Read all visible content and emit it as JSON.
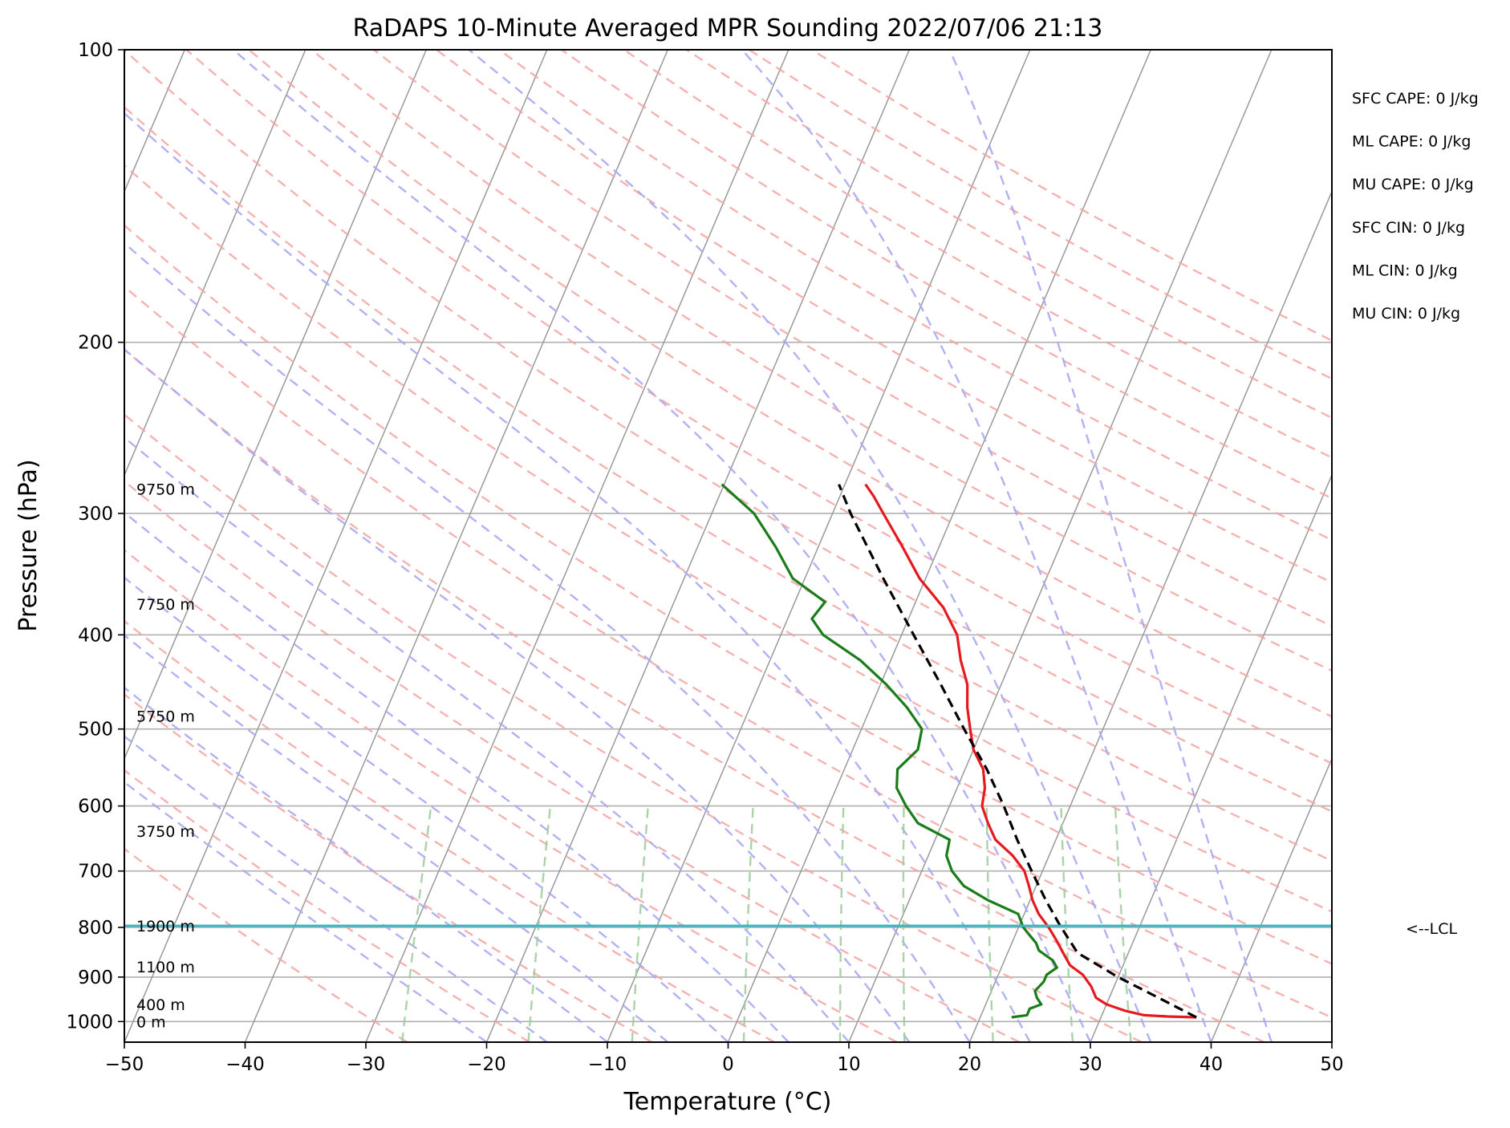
{
  "chart_data": {
    "type": "line",
    "title": "RaDAPS 10-Minute Averaged MPR Sounding 2022/07/06 21:13",
    "xlabel": "Temperature (°C)",
    "ylabel": "Pressure (hPa)",
    "xlim": [
      -50,
      50
    ],
    "ylim": [
      1050,
      100
    ],
    "y_scale": "log",
    "skew": "skew-T log-p",
    "grid": true,
    "x_ticks": [
      "−50",
      "−40",
      "−30",
      "−20",
      "−10",
      "0",
      "10",
      "20",
      "30",
      "40",
      "50"
    ],
    "x_tick_values": [
      -50,
      -40,
      -30,
      -20,
      -10,
      0,
      10,
      20,
      30,
      40,
      50
    ],
    "y_ticks": [
      "100",
      "200",
      "300",
      "400",
      "500",
      "600",
      "700",
      "800",
      "900",
      "1000"
    ],
    "y_tick_values": [
      100,
      200,
      300,
      400,
      500,
      600,
      700,
      800,
      900,
      1000
    ],
    "height_labels": [
      {
        "text": "9750 m",
        "p": 283
      },
      {
        "text": "7750 m",
        "p": 372
      },
      {
        "text": "5750 m",
        "p": 485
      },
      {
        "text": "3750 m",
        "p": 637
      },
      {
        "text": "1900 m",
        "p": 797
      },
      {
        "text": "1100 m",
        "p": 878
      },
      {
        "text": "400 m",
        "p": 960
      },
      {
        "text": "0 m",
        "p": 1000
      }
    ],
    "lcl": {
      "label": "<--LCL",
      "p": 797
    },
    "colors": {
      "temperature": "#e6191e",
      "dewpoint": "#1a7d1a",
      "parcel": "#000000",
      "lcl": "#2bbfbf",
      "isotherm": "#999999",
      "dry_adiabat": "#f4a3a3",
      "moist_adiabat": "#a9a9f2",
      "mixing_ratio": "#9fcf9f"
    },
    "series": [
      {
        "name": "",
        "kind": "temperature",
        "points": [
          {
            "p": 990,
            "t": 37.9
          },
          {
            "p": 988,
            "t": 35.5
          },
          {
            "p": 985,
            "t": 33.5
          },
          {
            "p": 975,
            "t": 31.8
          },
          {
            "p": 960,
            "t": 30.0
          },
          {
            "p": 945,
            "t": 28.9
          },
          {
            "p": 920,
            "t": 28.1
          },
          {
            "p": 895,
            "t": 27.0
          },
          {
            "p": 875,
            "t": 25.6
          },
          {
            "p": 850,
            "t": 24.6
          },
          {
            "p": 825,
            "t": 23.6
          },
          {
            "p": 800,
            "t": 22.5
          },
          {
            "p": 775,
            "t": 21.2
          },
          {
            "p": 750,
            "t": 20.2
          },
          {
            "p": 725,
            "t": 19.4
          },
          {
            "p": 700,
            "t": 18.5
          },
          {
            "p": 675,
            "t": 17.0
          },
          {
            "p": 650,
            "t": 15.0
          },
          {
            "p": 625,
            "t": 13.8
          },
          {
            "p": 600,
            "t": 12.7
          },
          {
            "p": 575,
            "t": 12.3
          },
          {
            "p": 550,
            "t": 11.5
          },
          {
            "p": 525,
            "t": 10.0
          },
          {
            "p": 500,
            "t": 9.0
          },
          {
            "p": 475,
            "t": 8.0
          },
          {
            "p": 450,
            "t": 7.2
          },
          {
            "p": 425,
            "t": 5.8
          },
          {
            "p": 400,
            "t": 4.6
          },
          {
            "p": 375,
            "t": 2.5
          },
          {
            "p": 350,
            "t": -0.5
          },
          {
            "p": 325,
            "t": -3.0
          },
          {
            "p": 300,
            "t": -5.8
          },
          {
            "p": 288,
            "t": -7.2
          },
          {
            "p": 280,
            "t": -8.3
          }
        ]
      },
      {
        "name": "",
        "kind": "dewpoint",
        "points": [
          {
            "p": 990,
            "t": 22.6
          },
          {
            "p": 985,
            "t": 23.8
          },
          {
            "p": 970,
            "t": 23.8
          },
          {
            "p": 960,
            "t": 24.6
          },
          {
            "p": 945,
            "t": 24.0
          },
          {
            "p": 930,
            "t": 23.6
          },
          {
            "p": 910,
            "t": 24.0
          },
          {
            "p": 895,
            "t": 24.0
          },
          {
            "p": 880,
            "t": 24.6
          },
          {
            "p": 865,
            "t": 24.0
          },
          {
            "p": 845,
            "t": 22.5
          },
          {
            "p": 830,
            "t": 22.0
          },
          {
            "p": 815,
            "t": 21.2
          },
          {
            "p": 800,
            "t": 20.4
          },
          {
            "p": 775,
            "t": 19.5
          },
          {
            "p": 750,
            "t": 16.5
          },
          {
            "p": 725,
            "t": 14.0
          },
          {
            "p": 700,
            "t": 12.5
          },
          {
            "p": 675,
            "t": 11.5
          },
          {
            "p": 650,
            "t": 11.2
          },
          {
            "p": 625,
            "t": 8.0
          },
          {
            "p": 600,
            "t": 6.4
          },
          {
            "p": 575,
            "t": 5.0
          },
          {
            "p": 550,
            "t": 4.4
          },
          {
            "p": 525,
            "t": 5.4
          },
          {
            "p": 500,
            "t": 5.0
          },
          {
            "p": 475,
            "t": 3.0
          },
          {
            "p": 450,
            "t": 0.5
          },
          {
            "p": 425,
            "t": -2.5
          },
          {
            "p": 400,
            "t": -6.5
          },
          {
            "p": 385,
            "t": -8.0
          },
          {
            "p": 370,
            "t": -7.5
          },
          {
            "p": 350,
            "t": -11.0
          },
          {
            "p": 325,
            "t": -13.5
          },
          {
            "p": 300,
            "t": -16.5
          },
          {
            "p": 280,
            "t": -20.2
          }
        ]
      },
      {
        "name": "",
        "kind": "parcel",
        "points": [
          {
            "p": 990,
            "t": 37.9
          },
          {
            "p": 950,
            "t": 34.5
          },
          {
            "p": 900,
            "t": 30.0
          },
          {
            "p": 850,
            "t": 25.8
          },
          {
            "p": 797,
            "t": 23.4
          },
          {
            "p": 750,
            "t": 21.3
          },
          {
            "p": 700,
            "t": 19.1
          },
          {
            "p": 650,
            "t": 16.8
          },
          {
            "p": 600,
            "t": 14.5
          },
          {
            "p": 550,
            "t": 11.8
          },
          {
            "p": 500,
            "t": 8.5
          },
          {
            "p": 450,
            "t": 5.0
          },
          {
            "p": 400,
            "t": 1.0
          },
          {
            "p": 350,
            "t": -3.5
          },
          {
            "p": 300,
            "t": -8.5
          },
          {
            "p": 280,
            "t": -10.5
          }
        ]
      }
    ],
    "annotations": [
      "SFC CAPE: 0 J/kg",
      "ML CAPE: 0 J/kg",
      "MU CAPE: 0 J/kg",
      "SFC CIN: 0 J/kg",
      "ML CIN: 0 J/kg",
      "MU CIN: 0 J/kg"
    ]
  }
}
